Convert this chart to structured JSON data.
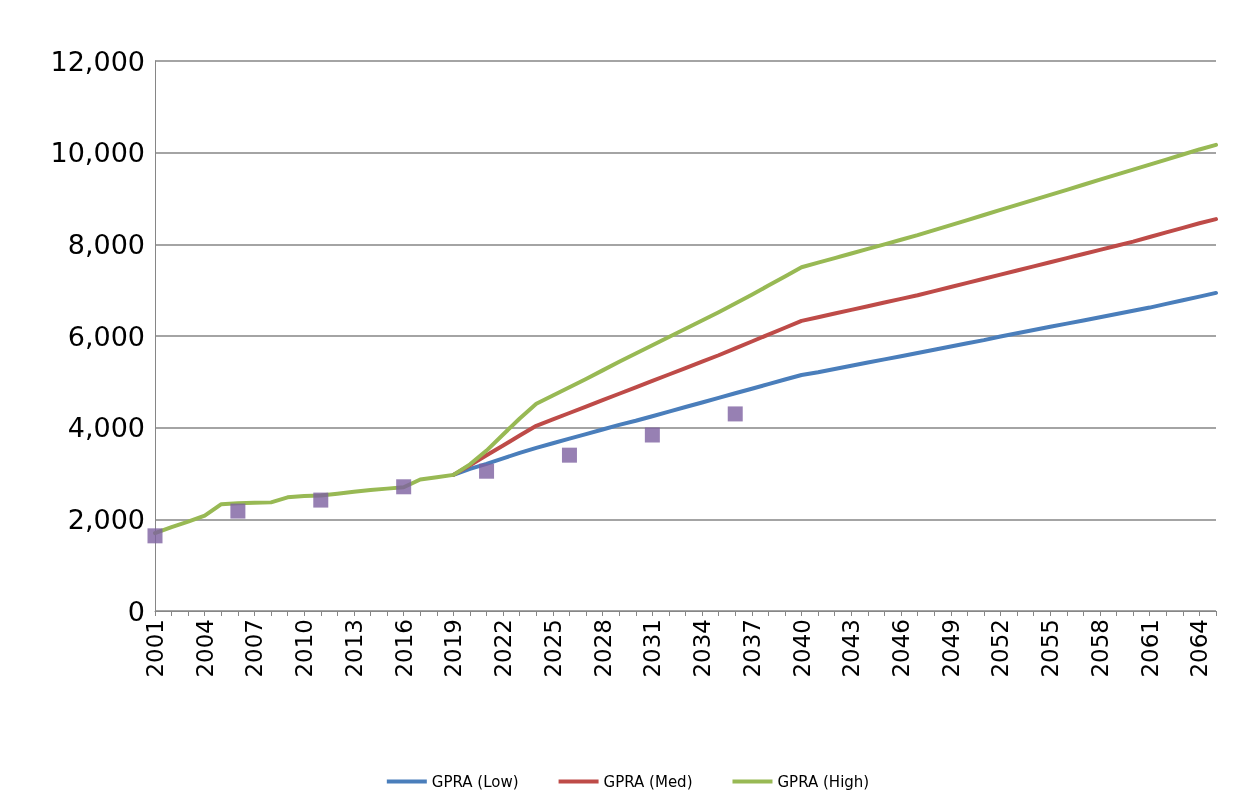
{
  "chart_data": {
    "type": "line",
    "categories": [
      "2001",
      null,
      null,
      "2004",
      null,
      null,
      "2007",
      null,
      null,
      "2010",
      null,
      null,
      "2013",
      null,
      null,
      "2016",
      null,
      null,
      "2019",
      null,
      null,
      "2022",
      null,
      null,
      "2025",
      null,
      null,
      "2028",
      null,
      null,
      "2031",
      null,
      null,
      "2034",
      null,
      null,
      "2037",
      null,
      null,
      "2040",
      null,
      null,
      "2043",
      null,
      null,
      "2046",
      null,
      null,
      "2049",
      null,
      null,
      "2052",
      null,
      null,
      "2055",
      null,
      null,
      "2058",
      null,
      null,
      "2061",
      null,
      null,
      "2064",
      null
    ],
    "series": [
      {
        "name": "GPRA (Low)",
        "color": "#4a7ebb",
        "values": [
          null,
          null,
          null,
          null,
          null,
          null,
          null,
          null,
          null,
          null,
          null,
          null,
          null,
          null,
          null,
          null,
          null,
          null,
          2970,
          3100,
          3210,
          3330,
          3450,
          3560,
          3660,
          3760,
          3860,
          3960,
          4060,
          4150,
          4250,
          4350,
          4450,
          4550,
          4650,
          4750,
          4850,
          4950,
          5050,
          5150,
          5210,
          5280,
          5350,
          5420,
          5490,
          5560,
          5630,
          5700,
          5770,
          5840,
          5910,
          5990,
          6060,
          6130,
          6200,
          6270,
          6340,
          6410,
          6480,
          6550,
          6620,
          6700,
          6780,
          6860,
          6940
        ]
      },
      {
        "name": "GPRA (Med)",
        "color": "#be4b48",
        "values": [
          null,
          null,
          null,
          null,
          null,
          null,
          null,
          null,
          null,
          null,
          null,
          null,
          null,
          null,
          null,
          null,
          null,
          null,
          2970,
          3180,
          3400,
          3610,
          3830,
          4040,
          4180,
          4320,
          4460,
          4600,
          4740,
          4880,
          5020,
          5160,
          5300,
          5440,
          5580,
          5730,
          5880,
          6030,
          6180,
          6330,
          6410,
          6490,
          6570,
          6650,
          6730,
          6810,
          6890,
          6980,
          7070,
          7160,
          7250,
          7340,
          7430,
          7520,
          7610,
          7700,
          7790,
          7880,
          7970,
          8060,
          8160,
          8260,
          8360,
          8460,
          8550
        ]
      },
      {
        "name": "GPRA (High)",
        "color": "#98b954",
        "values": [
          1700,
          1830,
          1950,
          2080,
          2330,
          2350,
          2360,
          2370,
          2480,
          2510,
          2520,
          2560,
          2600,
          2640,
          2670,
          2700,
          2870,
          2920,
          2970,
          3200,
          3500,
          3850,
          4200,
          4520,
          4700,
          4880,
          5060,
          5250,
          5440,
          5620,
          5800,
          5980,
          6160,
          6340,
          6520,
          6710,
          6900,
          7100,
          7300,
          7500,
          7600,
          7700,
          7800,
          7900,
          8000,
          8100,
          8200,
          8310,
          8420,
          8530,
          8640,
          8750,
          8860,
          8970,
          9080,
          9190,
          9300,
          9410,
          9520,
          9630,
          9740,
          9850,
          9960,
          10070,
          10170
        ]
      },
      {
        "type": "scatter",
        "marker": "square",
        "color": "#7d60a0",
        "values": [
          1640,
          null,
          null,
          null,
          null,
          2180,
          null,
          null,
          null,
          null,
          2420,
          null,
          null,
          null,
          null,
          2710,
          null,
          null,
          null,
          null,
          3050,
          null,
          null,
          null,
          null,
          3400,
          null,
          null,
          null,
          null,
          3840,
          null,
          null,
          null,
          null,
          4300,
          null,
          null,
          null,
          null,
          null,
          null,
          null,
          null,
          null,
          null,
          null,
          null,
          null,
          null,
          null,
          null,
          null,
          null,
          null,
          null,
          null,
          null,
          null,
          null,
          null,
          null,
          null,
          null,
          null
        ]
      }
    ],
    "ylim": [
      0,
      12000
    ],
    "yticks": [
      0,
      {
        "value": 2000,
        "label": "2,000"
      },
      {
        "value": 4000,
        "label": "4,000"
      },
      {
        "value": 6000,
        "label": "6,000"
      },
      {
        "value": 8000,
        "label": "8,000"
      },
      {
        "value": 10000,
        "label": "10,000"
      },
      {
        "value": 12000,
        "label": "12,000"
      }
    ],
    "grid": "y",
    "legend": "bottom",
    "marker": "none",
    "line_style": "solid"
  }
}
